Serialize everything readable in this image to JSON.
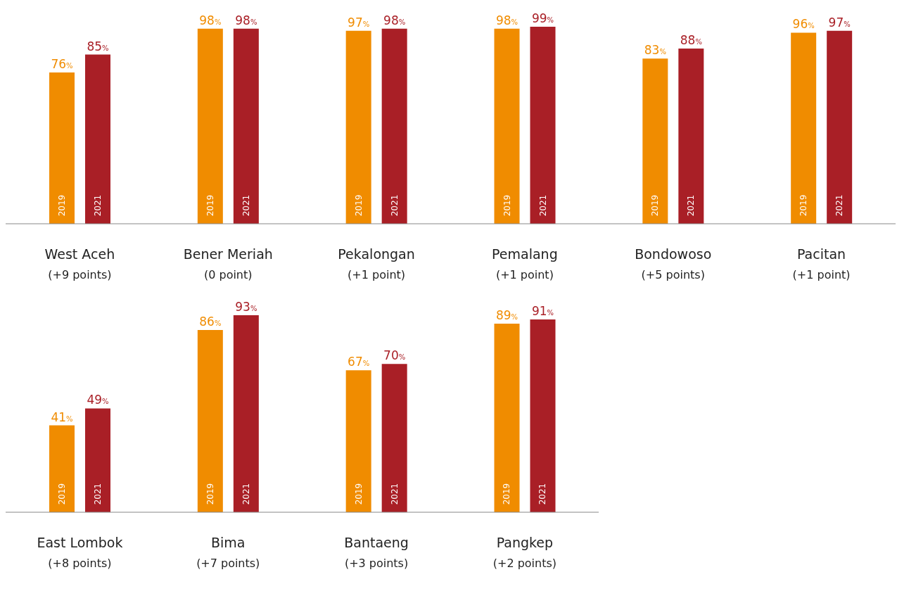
{
  "chart_data": [
    {
      "type": "bar",
      "categories": [
        "West Aceh\n(+9 points)",
        "Bener Meriah\n(0 point)",
        "Pekalongan\n(+1 point)",
        "Pemalang\n(+1 point)",
        "Bondowoso\n(+5 points)",
        "Pacitan\n(+1 point)"
      ],
      "series": [
        {
          "name": "2019",
          "color": "#f08c00",
          "values": [
            76,
            98,
            97,
            98,
            83,
            96
          ],
          "value_labels": [
            "76%",
            "98%",
            "97%",
            "98%",
            "83%",
            "96%"
          ]
        },
        {
          "name": "2021",
          "color": "#a91f26",
          "values": [
            85,
            98,
            98,
            99,
            88,
            97
          ],
          "value_labels": [
            "85%",
            "98%",
            "98%",
            "99%",
            "88%",
            "97%"
          ]
        }
      ]
    },
    {
      "type": "bar",
      "categories": [
        "East Lombok\n(+8 points)",
        "Bima\n(+7 points)",
        "Bantaeng\n(+3 points)",
        "Pangkep\n(+2 points)"
      ],
      "series": [
        {
          "name": "2019",
          "color": "#f08c00",
          "values": [
            41,
            86,
            67,
            89
          ],
          "value_labels": [
            "41%",
            "86%",
            "67%",
            "89%"
          ]
        },
        {
          "name": "2021",
          "color": "#a91f26",
          "values": [
            49,
            93,
            70,
            91
          ],
          "value_labels": [
            "49%",
            "93%",
            "70%",
            "91%"
          ]
        }
      ]
    }
  ]
}
